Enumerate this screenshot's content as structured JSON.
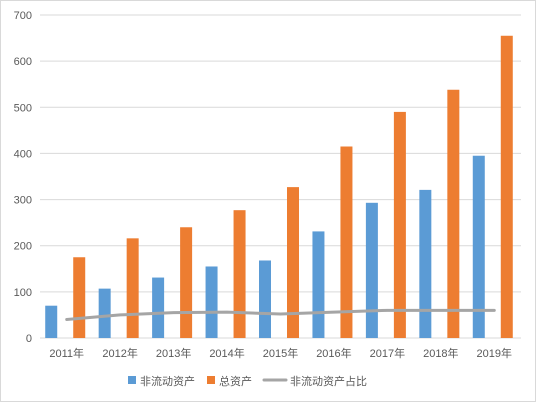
{
  "chart_data": {
    "type": "bar",
    "title": "",
    "xlabel": "",
    "ylabel": "",
    "ylim": [
      0,
      700
    ],
    "yticks": [
      "0",
      "100",
      "200",
      "300",
      "400",
      "500",
      "600",
      "700"
    ],
    "grid": true,
    "legend_position": "bottom",
    "categories": [
      "2011年",
      "2012年",
      "2013年",
      "2014年",
      "2015年",
      "2016年",
      "2017年",
      "2018年",
      "2019年"
    ],
    "series": [
      {
        "name": "非流动资产",
        "type": "bar",
        "color": "#5B9BD5",
        "values": [
          70,
          107,
          131,
          155,
          168,
          231,
          293,
          321,
          395
        ]
      },
      {
        "name": "总资产",
        "type": "bar",
        "color": "#ED7D31",
        "values": [
          175,
          216,
          240,
          277,
          327,
          415,
          490,
          538,
          655
        ]
      },
      {
        "name": "非流动资产占比",
        "type": "line",
        "color": "#A5A5A5",
        "values": [
          40,
          50,
          55,
          56,
          52,
          56,
          60,
          60,
          60
        ]
      }
    ]
  }
}
